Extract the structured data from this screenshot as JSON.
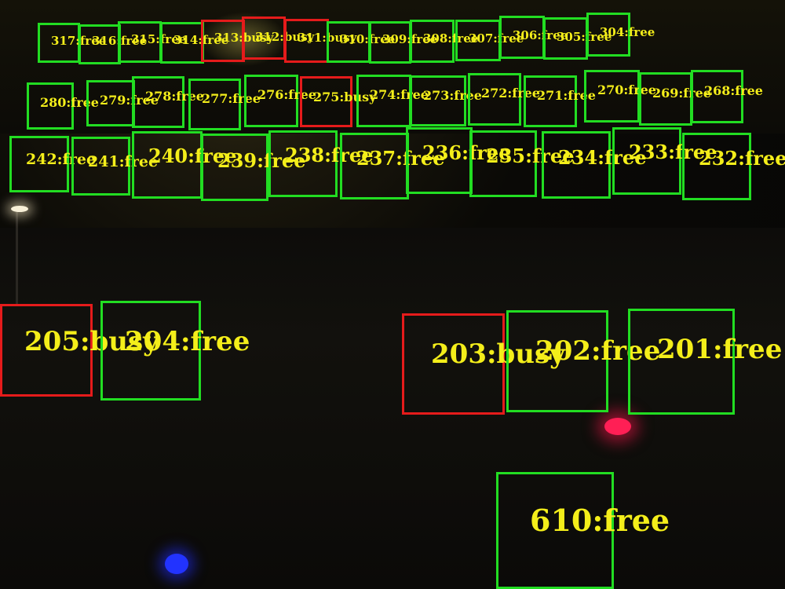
{
  "colors": {
    "free": "#22dd22",
    "busy": "#e51b1b",
    "label": "#f4ee1a"
  },
  "spots": [
    {
      "id": "317",
      "label": "317:free",
      "status": "free"
    },
    {
      "id": "316",
      "label": "316:free",
      "status": "free"
    },
    {
      "id": "315",
      "label": "315:free",
      "status": "free"
    },
    {
      "id": "314",
      "label": "314:free",
      "status": "free"
    },
    {
      "id": "313",
      "label": "313:busy",
      "status": "busy"
    },
    {
      "id": "312",
      "label": "312:busy",
      "status": "busy"
    },
    {
      "id": "311",
      "label": "311:busy",
      "status": "busy"
    },
    {
      "id": "310",
      "label": "310:free",
      "status": "free"
    },
    {
      "id": "309",
      "label": "309:free",
      "status": "free"
    },
    {
      "id": "308",
      "label": "308:free",
      "status": "free"
    },
    {
      "id": "307",
      "label": "307:free",
      "status": "free"
    },
    {
      "id": "306",
      "label": "306:free",
      "status": "free"
    },
    {
      "id": "305",
      "label": "305:free",
      "status": "free"
    },
    {
      "id": "304",
      "label": "304:free",
      "status": "free"
    },
    {
      "id": "280",
      "label": "280:free",
      "status": "free"
    },
    {
      "id": "279",
      "label": "279:free",
      "status": "free"
    },
    {
      "id": "278",
      "label": "278:free",
      "status": "free"
    },
    {
      "id": "277",
      "label": "277:free",
      "status": "free"
    },
    {
      "id": "276",
      "label": "276:free",
      "status": "free"
    },
    {
      "id": "275",
      "label": "275:busy",
      "status": "busy"
    },
    {
      "id": "274",
      "label": "274:free",
      "status": "free"
    },
    {
      "id": "273",
      "label": "273:free",
      "status": "free"
    },
    {
      "id": "272",
      "label": "272:free",
      "status": "free"
    },
    {
      "id": "271",
      "label": "271:free",
      "status": "free"
    },
    {
      "id": "270",
      "label": "270:free",
      "status": "free"
    },
    {
      "id": "269",
      "label": "269:free",
      "status": "free"
    },
    {
      "id": "268",
      "label": "268:free",
      "status": "free"
    },
    {
      "id": "242",
      "label": "242:free",
      "status": "free"
    },
    {
      "id": "241",
      "label": "241:free",
      "status": "free"
    },
    {
      "id": "240",
      "label": "240:free",
      "status": "free"
    },
    {
      "id": "239",
      "label": "239:free",
      "status": "free"
    },
    {
      "id": "238",
      "label": "238:free",
      "status": "free"
    },
    {
      "id": "237",
      "label": "237:free",
      "status": "free"
    },
    {
      "id": "236",
      "label": "236:free",
      "status": "free"
    },
    {
      "id": "235",
      "label": "235:free",
      "status": "free"
    },
    {
      "id": "234",
      "label": "234:free",
      "status": "free"
    },
    {
      "id": "233",
      "label": "233:free",
      "status": "free"
    },
    {
      "id": "232",
      "label": "232:free",
      "status": "free"
    },
    {
      "id": "205",
      "label": "205:busy",
      "status": "busy"
    },
    {
      "id": "204",
      "label": "204:free",
      "status": "free"
    },
    {
      "id": "203",
      "label": "203:busy",
      "status": "busy"
    },
    {
      "id": "202",
      "label": "202:free",
      "status": "free"
    },
    {
      "id": "201",
      "label": "201:free",
      "status": "free"
    },
    {
      "id": "610",
      "label": "610:free",
      "status": "free"
    }
  ]
}
